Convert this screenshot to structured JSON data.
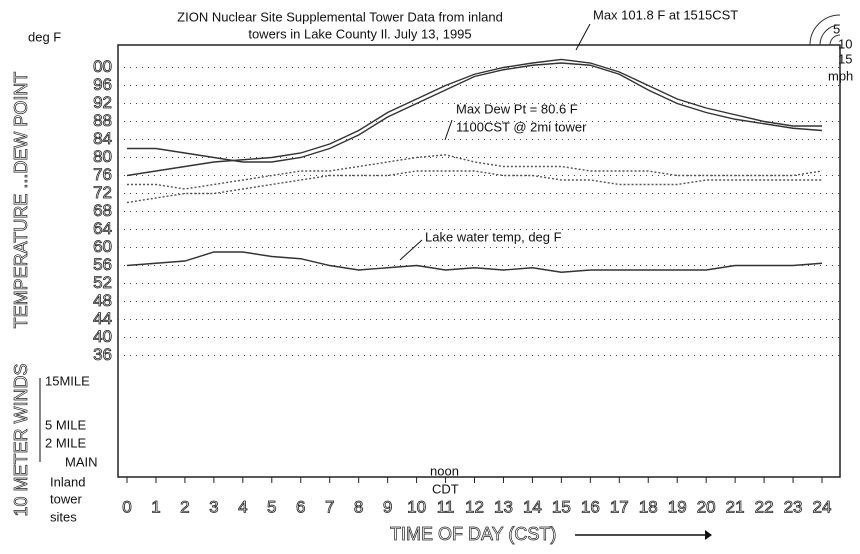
{
  "chart_data": {
    "type": "line",
    "title": [
      "ZION Nuclear Site Supplemental Tower Data from inland",
      "towers in Lake County Il.   July 13, 1995"
    ],
    "y_unit": "deg F",
    "y_axis_label": "TEMPERATURE ...DEW POINT",
    "x_axis_label": "TIME OF DAY (CST)",
    "annotations": [
      "Max 101.8 F at 1515CST",
      "Max Dew Pt = 80.6 F",
      "1100CST  @ 2mi tower",
      "Lake water temp, deg F",
      "noon",
      "CDT"
    ],
    "wind_section": {
      "label": "10 METER WINDS",
      "rows": [
        "15MILE",
        "5 MILE",
        "2 MILE",
        "MAIN"
      ],
      "sites_label": [
        "Inland",
        "tower",
        "sites"
      ],
      "speed_unit": "mph",
      "speed_rings": [
        "5",
        "10",
        "15"
      ]
    },
    "x": [
      0,
      1,
      2,
      3,
      4,
      5,
      6,
      7,
      8,
      9,
      10,
      11,
      12,
      13,
      14,
      15,
      16,
      17,
      18,
      19,
      20,
      21,
      22,
      23,
      24
    ],
    "xlim": [
      0,
      24
    ],
    "xticks": [
      0,
      1,
      2,
      3,
      4,
      5,
      6,
      7,
      8,
      9,
      10,
      11,
      12,
      13,
      14,
      15,
      16,
      17,
      18,
      19,
      20,
      21,
      22,
      23,
      24
    ],
    "ylim": [
      9,
      105
    ],
    "yticks": [
      {
        "value": 100,
        "label": "00"
      },
      96,
      92,
      88,
      84,
      80,
      76,
      72,
      68,
      64,
      60,
      56,
      52,
      48,
      44,
      40,
      36
    ],
    "grid": true,
    "series": [
      {
        "color": "#333333",
        "values": [
          76,
          77,
          78,
          79,
          79.5,
          80,
          81,
          83,
          86,
          90,
          93,
          96,
          98.5,
          100,
          101,
          101.8,
          101,
          99,
          96,
          93,
          91,
          89.5,
          88,
          87,
          87
        ]
      },
      {
        "color": "#333333",
        "values": [
          82,
          82,
          81,
          80,
          79,
          79,
          80,
          82,
          85,
          89,
          92,
          95,
          98,
          99.5,
          100.5,
          101,
          100.5,
          98.5,
          95,
          92,
          90,
          88.5,
          87.5,
          86.5,
          86
        ]
      },
      {
        "color": "#555555",
        "dashed": true,
        "values": [
          74,
          74,
          73,
          74,
          75,
          76,
          77,
          77,
          78,
          79,
          80,
          80.6,
          79,
          78,
          78,
          78,
          77,
          77,
          77,
          76,
          76,
          76,
          76,
          76,
          77
        ]
      },
      {
        "color": "#555555",
        "dashed": true,
        "values": [
          70,
          71,
          72,
          72,
          73,
          74,
          75,
          76,
          76,
          76,
          77,
          77,
          77,
          76,
          76,
          75,
          75,
          74,
          74,
          74,
          75,
          75,
          75,
          75,
          75
        ]
      },
      {
        "color": "#333333",
        "values": [
          56,
          56.5,
          57,
          59,
          59,
          58,
          57.5,
          56,
          55,
          55.5,
          56,
          55,
          55.5,
          55,
          55.5,
          54.5,
          55,
          55,
          55,
          55,
          55,
          56,
          56,
          56,
          56.5
        ]
      }
    ]
  }
}
